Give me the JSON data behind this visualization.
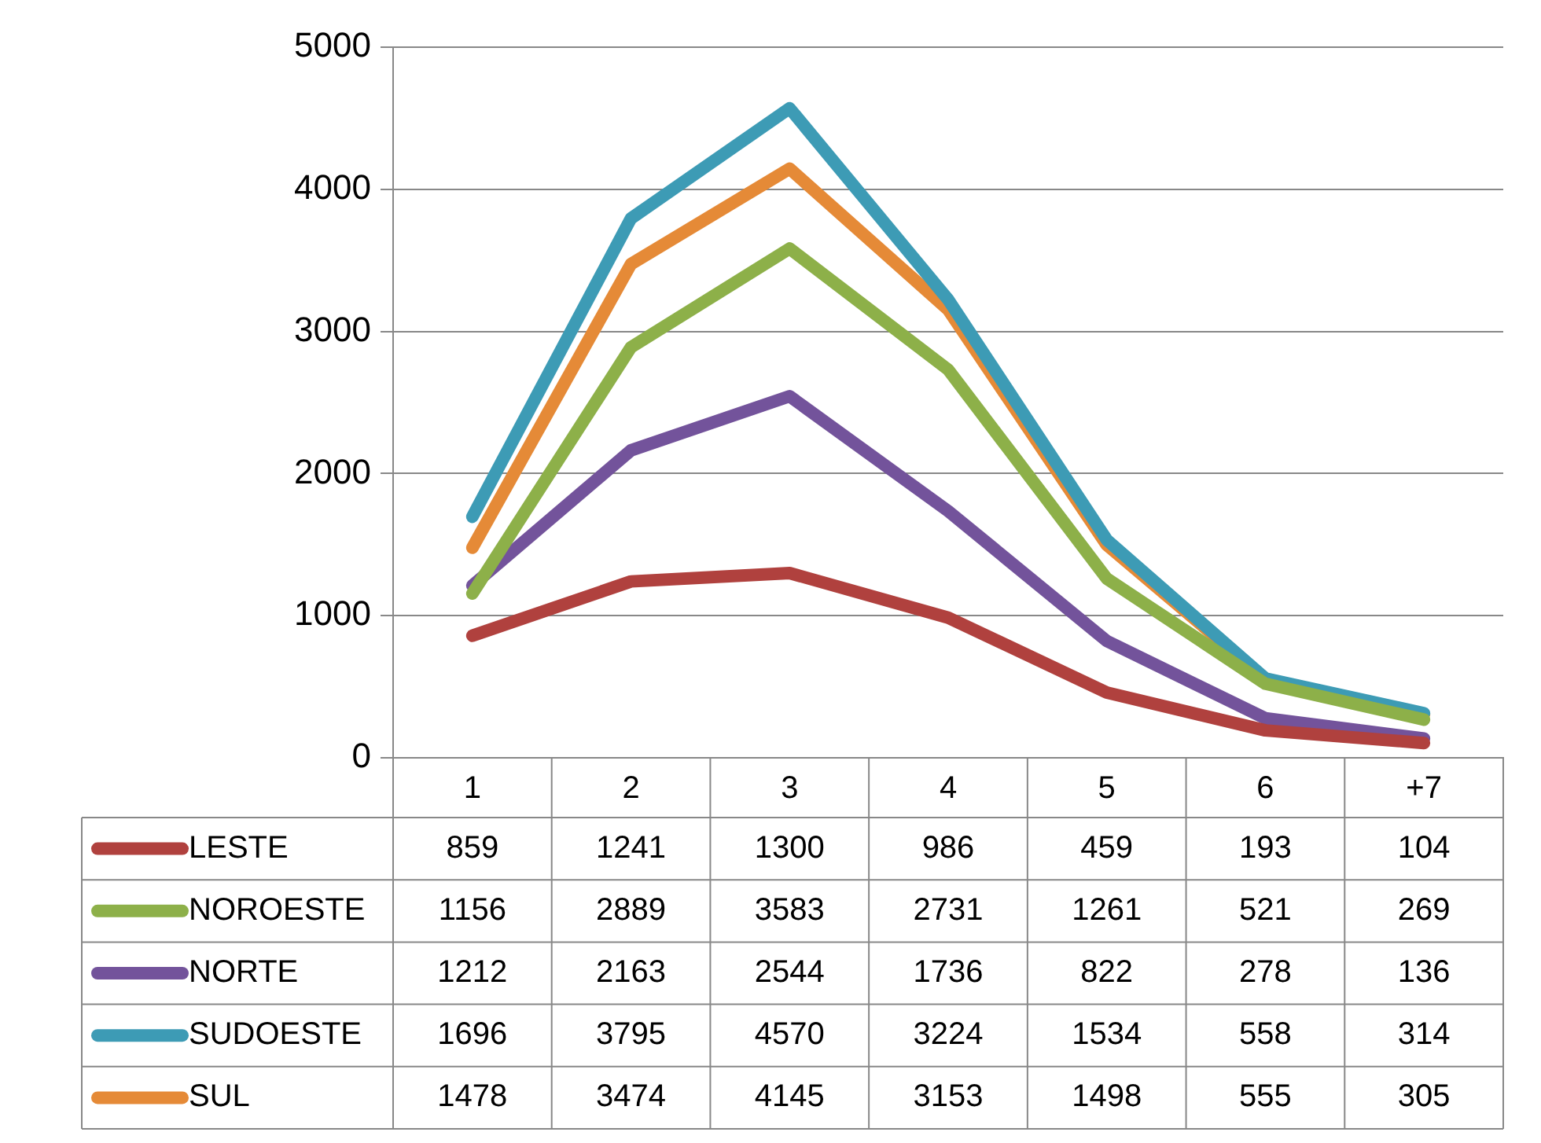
{
  "chart_data": {
    "type": "line",
    "categories": [
      "1",
      "2",
      "3",
      "4",
      "5",
      "6",
      "+7"
    ],
    "series": [
      {
        "name": "LESTE",
        "color": "#b0413e",
        "values": [
          859,
          1241,
          1300,
          986,
          459,
          193,
          104
        ]
      },
      {
        "name": "NOROESTE",
        "color": "#8db049",
        "values": [
          1156,
          2889,
          3583,
          2731,
          1261,
          521,
          269
        ]
      },
      {
        "name": "NORTE",
        "color": "#73539b",
        "values": [
          1212,
          2163,
          2544,
          1736,
          822,
          278,
          136
        ]
      },
      {
        "name": "SUDOESTE",
        "color": "#3d9bb5",
        "values": [
          1696,
          3795,
          4570,
          3224,
          1534,
          558,
          314
        ]
      },
      {
        "name": "SUL",
        "color": "#e58a37",
        "values": [
          1478,
          3474,
          4145,
          3153,
          1498,
          555,
          305
        ]
      }
    ],
    "ylim": [
      0,
      5000
    ],
    "yticks": [
      0,
      1000,
      2000,
      3000,
      4000,
      5000
    ],
    "grid": "y",
    "legend": "bottom",
    "data_labels": true,
    "marker": "none",
    "line_style": "solid"
  }
}
